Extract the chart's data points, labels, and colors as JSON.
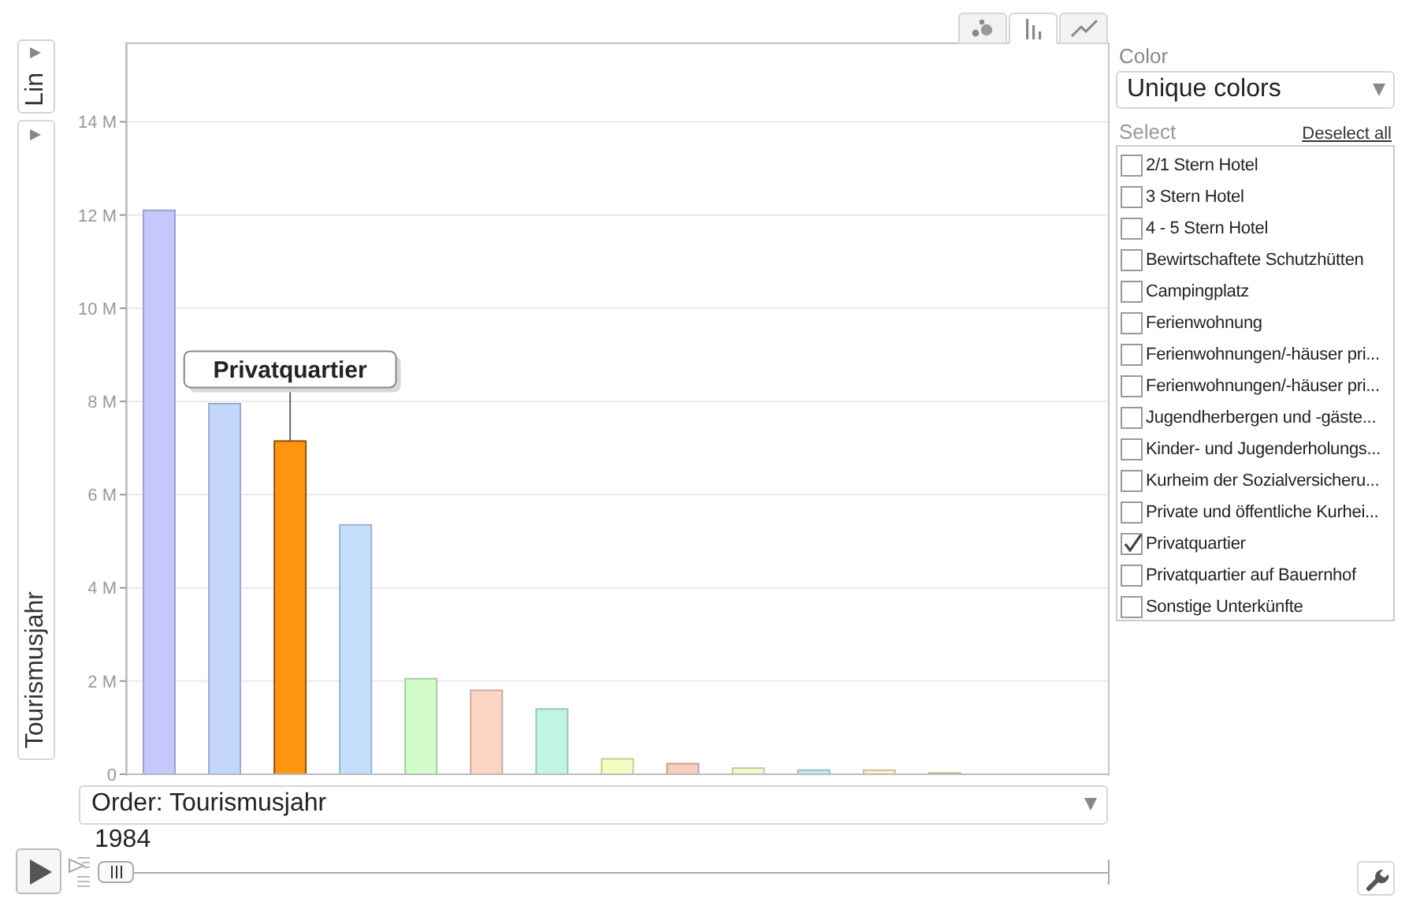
{
  "chart_data": {
    "type": "bar",
    "xlabel": "Order: Tourismusjahr",
    "ylabel": "Tourismusjahr",
    "annotations": [
      "Lin",
      "Color",
      "Unique colors",
      "Select",
      "Deselect all",
      "2/1 Stern Hotel",
      "3 Stern Hotel",
      "4 - 5 Stern Hotel",
      "Bewirtschaftete Schutzhütten",
      "Campingplatz",
      "Ferienwohnung",
      "Ferienwohnungen/-häuser pri...",
      "Ferienwohnungen/-häuser pri...",
      "Jugendherbergen und -gäste...",
      "Kinder- und Jugenderholungs...",
      "Kurheim der Sozialversicheru...",
      "Private und öffentliche Kurhei...",
      "Privatquartier",
      "Privatquartier auf Bauernhof",
      "Sonstige Unterkünfte",
      "1984"
    ],
    "categories": [
      null,
      null,
      null,
      null,
      null,
      null,
      null,
      null,
      null,
      null,
      null,
      null,
      null,
      null,
      null
    ],
    "series": [
      {
        "colors": [
          "#c4c8fc",
          "#c4d6fc",
          null,
          "#c4defc",
          "#d2fcca",
          "#fcd6c4",
          "#c2f5e6",
          "#f6fdc2",
          "#fdcbc2",
          "#f0fcc8",
          "#c4eaf8",
          "#fdf2c4",
          "#f0f0c4",
          "#e0d4f8",
          "#d0f0f0"
        ],
        "values": [
          12.1,
          7.95,
          null,
          5.35,
          2.05,
          1.8,
          1.4,
          0.33,
          0.23,
          0.13,
          0.09,
          0.09,
          0.03,
          0,
          0
        ]
      },
      {
        "name": "Privatquartier",
        "color": "#ff9410",
        "values": [
          null,
          null,
          7.15,
          null,
          null,
          null,
          null,
          null,
          null,
          null,
          null,
          null,
          null,
          null,
          null
        ]
      }
    ],
    "stacked": true,
    "ylim": [
      0,
      15.7
    ],
    "yticks": [
      0,
      {
        "value": 2,
        "label": "2 M"
      },
      {
        "value": 4,
        "label": "4 M"
      },
      {
        "value": 6,
        "label": "6 M"
      },
      {
        "value": 8,
        "label": "8 M"
      },
      {
        "value": 10,
        "label": "10 M"
      },
      {
        "value": 12,
        "label": "12 M"
      },
      {
        "value": 14,
        "label": "14 M"
      }
    ],
    "grid": "y",
    "tick_labels": "y"
  }
}
